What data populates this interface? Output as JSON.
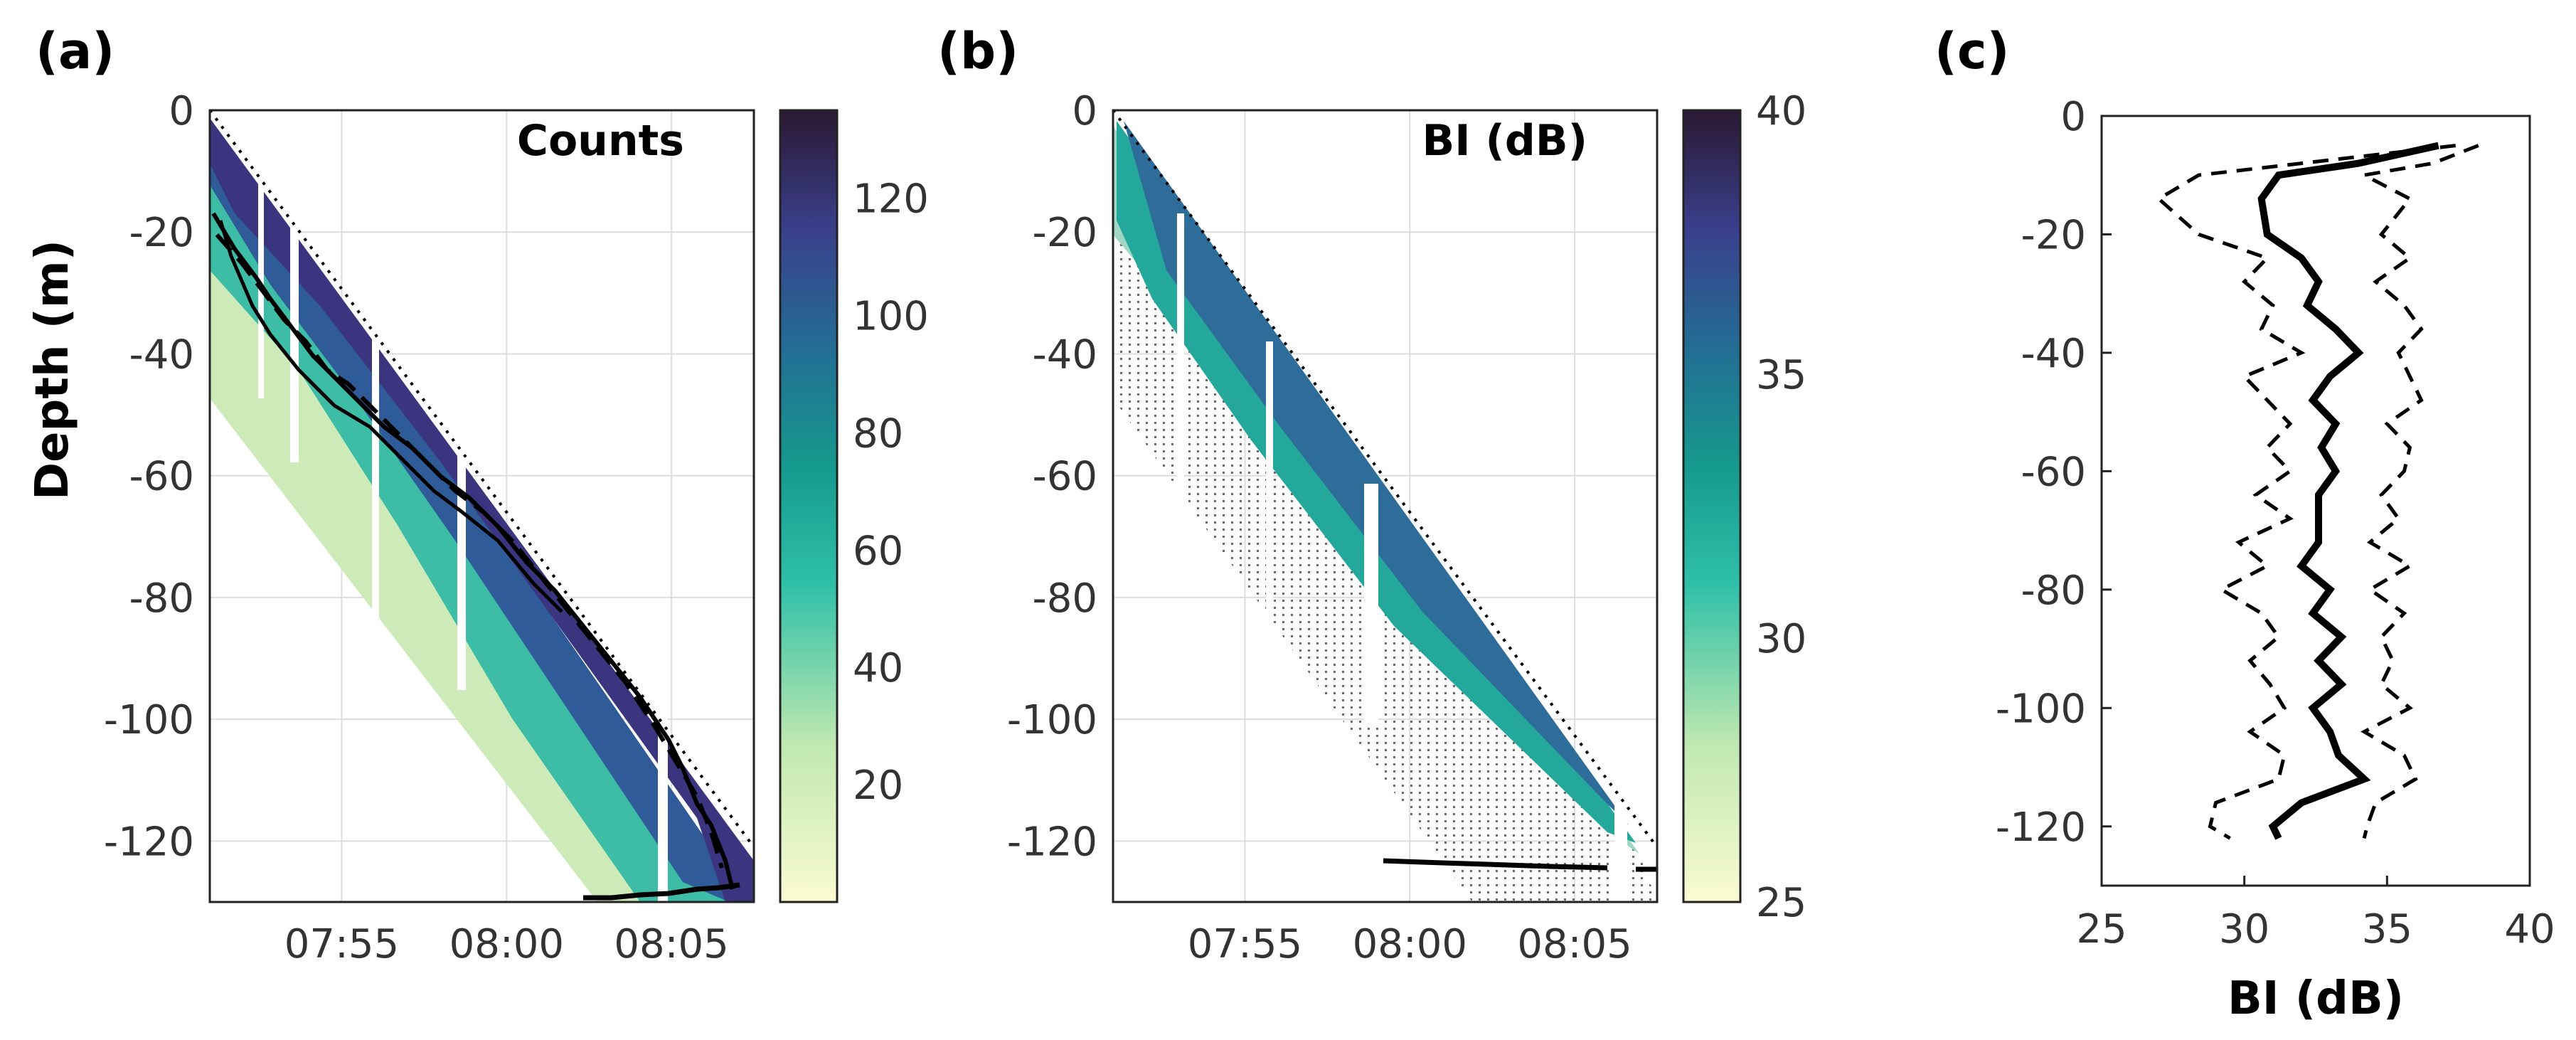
{
  "chart_data": [
    {
      "panel": "(a)",
      "type": "heatmap",
      "inset_label": "Counts",
      "ylabel": "Depth (m)",
      "y_ticks": [
        "0",
        "-20",
        "-40",
        "-60",
        "-80",
        "-100",
        "-120"
      ],
      "y_tick_values": [
        0,
        -20,
        -40,
        -60,
        -80,
        -100,
        -120
      ],
      "ylim": [
        -130,
        0
      ],
      "x_ticks": [
        "07:55",
        "08:00",
        "08:05"
      ],
      "x_tick_values": [
        "07:55",
        "08:00",
        "08:05"
      ],
      "xlim": [
        "07:51",
        "08:07.5"
      ],
      "colorbar": {
        "ticks": [
          "20",
          "40",
          "60",
          "80",
          "100",
          "120"
        ],
        "tick_values": [
          20,
          40,
          60,
          80,
          100,
          120
        ],
        "range": [
          0,
          135
        ]
      }
    },
    {
      "panel": "(b)",
      "type": "heatmap",
      "inset_label": "BI (dB)",
      "y_ticks": [
        "0",
        "-20",
        "-40",
        "-60",
        "-80",
        "-100",
        "-120"
      ],
      "y_tick_values": [
        0,
        -20,
        -40,
        -60,
        -80,
        -100,
        -120
      ],
      "ylim": [
        -130,
        0
      ],
      "x_ticks": [
        "07:55",
        "08:00",
        "08:05"
      ],
      "x_tick_values": [
        "07:55",
        "08:00",
        "08:05"
      ],
      "xlim": [
        "07:51",
        "08:07.5"
      ],
      "colorbar": {
        "ticks": [
          "25",
          "30",
          "35",
          "40"
        ],
        "tick_values": [
          25,
          30,
          35,
          40
        ],
        "range": [
          25,
          40
        ]
      }
    },
    {
      "panel": "(c)",
      "type": "line",
      "xlabel": "BI (dB)",
      "x_ticks": [
        "25",
        "30",
        "35",
        "40"
      ],
      "x_tick_values": [
        25,
        30,
        35,
        40
      ],
      "xlim": [
        25,
        40
      ],
      "y_ticks": [
        "0",
        "-20",
        "-40",
        "-60",
        "-80",
        "-100",
        "-120"
      ],
      "y_tick_values": [
        0,
        -20,
        -40,
        -60,
        -80,
        -100,
        -120
      ],
      "ylim": [
        -130,
        0
      ],
      "depth": [
        -5,
        -8,
        -10,
        -14,
        -20,
        -24,
        -28,
        -32,
        -36,
        -40,
        -44,
        -48,
        -52,
        -56,
        -60,
        -64,
        -68,
        -72,
        -76,
        -80,
        -84,
        -88,
        -92,
        -96,
        -100,
        -104,
        -108,
        -112,
        -116,
        -120,
        -122
      ],
      "series": [
        {
          "style": "solid",
          "values": [
            36.8,
            34.0,
            31.2,
            30.6,
            30.8,
            32.0,
            32.6,
            32.2,
            33.2,
            34.0,
            33.0,
            32.4,
            33.2,
            32.7,
            33.2,
            32.6,
            32.6,
            32.6,
            32.0,
            33.0,
            32.4,
            33.4,
            32.6,
            33.4,
            32.4,
            33.0,
            33.3,
            34.2,
            32.0,
            31.0,
            31.2
          ]
        },
        {
          "style": "dashed",
          "values": [
            37.4,
            32.0,
            28.4,
            27.0,
            28.4,
            30.8,
            30.0,
            31.0,
            30.6,
            32.0,
            30.0,
            30.8,
            31.6,
            30.8,
            31.6,
            30.4,
            31.6,
            29.8,
            30.8,
            29.2,
            30.6,
            31.2,
            30.2,
            30.9,
            31.4,
            30.2,
            31.4,
            31.2,
            29.0,
            28.8,
            29.5
          ]
        },
        {
          "style": "dashed",
          "values": [
            38.2,
            36.6,
            34.2,
            35.8,
            34.8,
            35.8,
            34.6,
            35.6,
            36.2,
            35.4,
            35.8,
            36.2,
            35.0,
            35.8,
            35.6,
            34.8,
            35.4,
            34.4,
            35.8,
            34.4,
            35.6,
            34.8,
            35.2,
            34.8,
            35.8,
            34.2,
            35.6,
            36.0,
            34.6,
            34.3,
            34.2
          ]
        }
      ]
    }
  ]
}
